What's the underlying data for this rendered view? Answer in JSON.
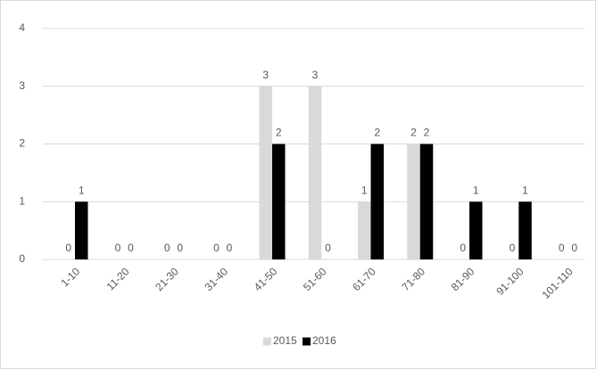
{
  "chart_data": {
    "type": "bar",
    "categories": [
      "1-10",
      "11-20",
      "21-30",
      "31-40",
      "41-50",
      "51-60",
      "61-70",
      "71-80",
      "81-90",
      "91-100",
      "101-110"
    ],
    "series": [
      {
        "name": "2015",
        "color": "#d9d9d9",
        "values": [
          0,
          0,
          0,
          0,
          3,
          3,
          1,
          2,
          0,
          0,
          0
        ]
      },
      {
        "name": "2016",
        "color": "#000000",
        "values": [
          1,
          0,
          0,
          0,
          2,
          0,
          2,
          2,
          1,
          1,
          0
        ]
      }
    ],
    "ylim": [
      0,
      4
    ],
    "yticks": [
      0,
      1,
      2,
      3,
      4
    ],
    "grid": true,
    "legend": "bottom"
  }
}
